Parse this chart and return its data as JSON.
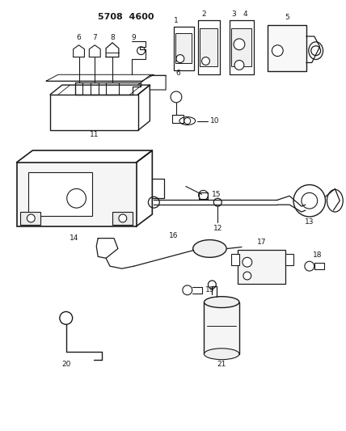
{
  "bg_color": "#ffffff",
  "line_color": "#1a1a1a",
  "text_color": "#1a1a1a",
  "figsize": [
    4.28,
    5.33
  ],
  "dpi": 100,
  "title": "5708  4600",
  "fs": 6.5
}
